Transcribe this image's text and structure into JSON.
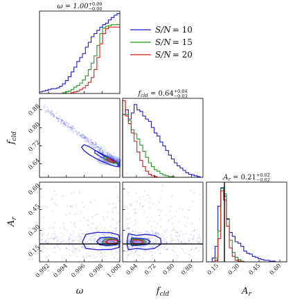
{
  "chart_data": {
    "type": "corner",
    "title": "",
    "parameters": [
      {
        "key": "omega",
        "label": "ω",
        "range": [
          0.991,
          1.0
        ],
        "ticks": [
          "0.992",
          "0.994",
          "0.996",
          "0.998",
          "1.000"
        ],
        "tick_values": [
          0.992,
          0.994,
          0.996,
          0.998,
          1.0
        ]
      },
      {
        "key": "fcld",
        "label": "f",
        "label_sub": "cld",
        "range": [
          0.58,
          0.93
        ],
        "ticks": [
          "0.64",
          "0.72",
          "0.80",
          "0.88"
        ],
        "tick_values": [
          0.64,
          0.72,
          0.8,
          0.88
        ]
      },
      {
        "key": "Ar",
        "label": "A",
        "label_sub": "r",
        "range": [
          0.07,
          0.65
        ],
        "ticks": [
          "0.15",
          "0.30",
          "0.45",
          "0.60"
        ],
        "tick_values": [
          0.15,
          0.3,
          0.45,
          0.6
        ]
      }
    ],
    "marginal_titles": [
      {
        "prefix": "ω = 1.00",
        "sup": "+0.00",
        "sub": "−0.00"
      },
      {
        "prefix": "f",
        "prefix_sub": "cld",
        "mid": " = 0.64",
        "sup": "+0.04",
        "sub": "−0.03"
      },
      {
        "prefix": "A",
        "prefix_sub": "r",
        "mid": " = 0.21",
        "sup": "+0.02",
        "sub": "−0.02"
      }
    ],
    "truth": {
      "Ar": 0.2
    },
    "legend": {
      "placement": "top-right"
    },
    "series": [
      {
        "name": "S/N = 10",
        "name_main": "S/N",
        "name_value": "= 10",
        "color": "#1a1ad6",
        "hist_omega": [
          0.02,
          0.03,
          0.04,
          0.05,
          0.06,
          0.06,
          0.07,
          0.09,
          0.12,
          0.16,
          0.21,
          0.27,
          0.33,
          0.4,
          0.45,
          0.5,
          0.58,
          0.64,
          0.71,
          0.75,
          0.79,
          0.83,
          0.86,
          0.88,
          0.92,
          0.95,
          0.98,
          1.0
        ],
        "hist_fcld": [
          0.82,
          0.88,
          0.76,
          0.84,
          0.95,
          0.88,
          0.86,
          0.8,
          0.76,
          0.73,
          0.65,
          0.58,
          0.54,
          0.46,
          0.41,
          0.35,
          0.29,
          0.24,
          0.19,
          0.15,
          0.12,
          0.09,
          0.06,
          0.04,
          0.03,
          0.02,
          0.01,
          0.0
        ],
        "hist_Ar": [
          0.0,
          0.0,
          0.05,
          0.2,
          0.72,
          0.96,
          0.85,
          0.55,
          0.38,
          0.33,
          0.26,
          0.24,
          0.2,
          0.14,
          0.11,
          0.1,
          0.07,
          0.06,
          0.04,
          0.03,
          0.02,
          0.02,
          0.01,
          0.01,
          0.0,
          0.0,
          0.0,
          0.0
        ]
      },
      {
        "name": "S/N = 15",
        "name_main": "S/N",
        "name_value": "= 15",
        "color": "#1f9a1f",
        "hist_omega": [
          0.0,
          0.0,
          0.0,
          0.0,
          0.0,
          0.0,
          0.0,
          0.0,
          0.01,
          0.02,
          0.03,
          0.05,
          0.08,
          0.1,
          0.13,
          0.17,
          0.22,
          0.3,
          0.38,
          0.47,
          0.6,
          0.75,
          0.82,
          0.84,
          0.85,
          0.86,
          0.86,
          0.86
        ],
        "hist_fcld": [
          1.0,
          0.82,
          0.74,
          0.62,
          0.57,
          0.5,
          0.42,
          0.34,
          0.26,
          0.19,
          0.14,
          0.1,
          0.08,
          0.05,
          0.03,
          0.02,
          0.01,
          0.01,
          0.0,
          0.0,
          0.0,
          0.0,
          0.0,
          0.0,
          0.0,
          0.0,
          0.0,
          0.0
        ],
        "hist_Ar": [
          0.0,
          0.0,
          0.0,
          0.05,
          0.4,
          0.95,
          0.88,
          0.56,
          0.28,
          0.12,
          0.06,
          0.03,
          0.01,
          0.0,
          0.0,
          0.0,
          0.0,
          0.0,
          0.0,
          0.0,
          0.0,
          0.0,
          0.0,
          0.0,
          0.0,
          0.0,
          0.0,
          0.0
        ]
      },
      {
        "name": "S/N = 20",
        "name_main": "S/N",
        "name_value": "= 20",
        "color": "#d81818",
        "hist_omega": [
          0.0,
          0.0,
          0.0,
          0.0,
          0.0,
          0.0,
          0.0,
          0.0,
          0.0,
          0.0,
          0.0,
          0.01,
          0.02,
          0.03,
          0.05,
          0.07,
          0.1,
          0.14,
          0.2,
          0.3,
          0.45,
          0.62,
          0.75,
          0.81,
          0.83,
          0.83,
          0.83,
          0.83
        ],
        "hist_fcld": [
          1.0,
          0.8,
          0.7,
          0.58,
          0.47,
          0.33,
          0.22,
          0.14,
          0.08,
          0.04,
          0.02,
          0.01,
          0.0,
          0.0,
          0.0,
          0.0,
          0.0,
          0.0,
          0.0,
          0.0,
          0.0,
          0.0,
          0.0,
          0.0,
          0.0,
          0.0,
          0.0,
          0.0
        ],
        "hist_Ar": [
          0.0,
          0.0,
          0.0,
          0.02,
          0.3,
          0.92,
          0.8,
          0.46,
          0.18,
          0.07,
          0.02,
          0.01,
          0.0,
          0.0,
          0.0,
          0.0,
          0.0,
          0.0,
          0.0,
          0.0,
          0.0,
          0.0,
          0.0,
          0.0,
          0.0,
          0.0,
          0.0,
          0.0
        ]
      }
    ],
    "contours": [
      {
        "panel": "fcld_vs_omega",
        "series": "S/N = 10",
        "color": "#1a1ad6",
        "points": [
          [
            0.996,
            0.725
          ],
          [
            0.9966,
            0.715
          ],
          [
            0.9973,
            0.698
          ],
          [
            0.998,
            0.68
          ],
          [
            0.9987,
            0.664
          ],
          [
            0.9993,
            0.65
          ],
          [
            0.9998,
            0.638
          ],
          [
            0.9999,
            0.63
          ],
          [
            0.9996,
            0.628
          ],
          [
            0.999,
            0.634
          ],
          [
            0.9982,
            0.647
          ],
          [
            0.9974,
            0.662
          ],
          [
            0.9966,
            0.68
          ],
          [
            0.996,
            0.698
          ],
          [
            0.9957,
            0.714
          ]
        ]
      },
      {
        "panel": "fcld_vs_omega",
        "series": "S/N = 10",
        "color": "#1a1ad6",
        "points": [
          [
            0.9972,
            0.7
          ],
          [
            0.998,
            0.684
          ],
          [
            0.9988,
            0.668
          ],
          [
            0.9994,
            0.654
          ],
          [
            0.9997,
            0.646
          ],
          [
            0.9993,
            0.645
          ],
          [
            0.9986,
            0.656
          ],
          [
            0.9978,
            0.672
          ],
          [
            0.9972,
            0.688
          ]
        ]
      },
      {
        "panel": "fcld_vs_omega",
        "series": "S/N = 15",
        "color": "#1f9a1f",
        "points": [
          [
            0.9982,
            0.672
          ],
          [
            0.9988,
            0.662
          ],
          [
            0.9994,
            0.65
          ],
          [
            0.9997,
            0.644
          ],
          [
            0.9993,
            0.642
          ],
          [
            0.9987,
            0.652
          ],
          [
            0.9982,
            0.663
          ]
        ]
      },
      {
        "panel": "fcld_vs_omega",
        "series": "S/N = 20",
        "color": "#d81818",
        "points": [
          [
            0.9986,
            0.664
          ],
          [
            0.9991,
            0.656
          ],
          [
            0.9995,
            0.649
          ],
          [
            0.9992,
            0.647
          ],
          [
            0.9987,
            0.654
          ]
        ]
      },
      {
        "panel": "Ar_vs_omega",
        "series": "S/N = 10",
        "color": "#1a1ad6",
        "points": [
          [
            0.9958,
            0.215
          ],
          [
            0.9962,
            0.27
          ],
          [
            0.9975,
            0.285
          ],
          [
            0.999,
            0.282
          ],
          [
            0.9999,
            0.265
          ],
          [
            1.0,
            0.215
          ],
          [
            0.9999,
            0.175
          ],
          [
            0.999,
            0.16
          ],
          [
            0.9975,
            0.158
          ],
          [
            0.9962,
            0.168
          ]
        ]
      },
      {
        "panel": "Ar_vs_omega",
        "series": "S/N = 10",
        "color": "#1a1ad6",
        "points": [
          [
            0.9974,
            0.218
          ],
          [
            0.9978,
            0.245
          ],
          [
            0.9988,
            0.25
          ],
          [
            0.9997,
            0.24
          ],
          [
            0.9999,
            0.215
          ],
          [
            0.9996,
            0.195
          ],
          [
            0.9986,
            0.188
          ],
          [
            0.9977,
            0.195
          ]
        ]
      },
      {
        "panel": "Ar_vs_omega",
        "series": "S/N = 15",
        "color": "#1f9a1f",
        "points": [
          [
            0.998,
            0.215
          ],
          [
            0.9983,
            0.235
          ],
          [
            0.999,
            0.238
          ],
          [
            0.9997,
            0.232
          ],
          [
            0.9998,
            0.212
          ],
          [
            0.9995,
            0.198
          ],
          [
            0.9987,
            0.195
          ],
          [
            0.9982,
            0.2
          ]
        ]
      },
      {
        "panel": "Ar_vs_omega",
        "series": "S/N = 20",
        "color": "#d81818",
        "points": [
          [
            0.9984,
            0.215
          ],
          [
            0.9987,
            0.23
          ],
          [
            0.9993,
            0.232
          ],
          [
            0.9997,
            0.226
          ],
          [
            0.9997,
            0.21
          ],
          [
            0.9992,
            0.202
          ],
          [
            0.9987,
            0.204
          ]
        ]
      },
      {
        "panel": "Ar_vs_fcld",
        "series": "S/N = 10",
        "color": "#1a1ad6",
        "points": [
          [
            0.6,
            0.225
          ],
          [
            0.605,
            0.275
          ],
          [
            0.64,
            0.262
          ],
          [
            0.68,
            0.27
          ],
          [
            0.72,
            0.262
          ],
          [
            0.745,
            0.24
          ],
          [
            0.748,
            0.2
          ],
          [
            0.72,
            0.168
          ],
          [
            0.68,
            0.16
          ],
          [
            0.64,
            0.168
          ],
          [
            0.605,
            0.158
          ],
          [
            0.6,
            0.19
          ]
        ]
      },
      {
        "panel": "Ar_vs_fcld",
        "series": "S/N = 10",
        "color": "#1a1ad6",
        "points": [
          [
            0.615,
            0.215
          ],
          [
            0.62,
            0.245
          ],
          [
            0.65,
            0.24
          ],
          [
            0.685,
            0.236
          ],
          [
            0.7,
            0.218
          ],
          [
            0.69,
            0.198
          ],
          [
            0.655,
            0.192
          ],
          [
            0.62,
            0.188
          ]
        ]
      },
      {
        "panel": "Ar_vs_fcld",
        "series": "S/N = 15",
        "color": "#1f9a1f",
        "points": [
          [
            0.618,
            0.215
          ],
          [
            0.622,
            0.236
          ],
          [
            0.65,
            0.234
          ],
          [
            0.675,
            0.228
          ],
          [
            0.682,
            0.212
          ],
          [
            0.67,
            0.198
          ],
          [
            0.645,
            0.196
          ],
          [
            0.622,
            0.196
          ]
        ]
      },
      {
        "panel": "Ar_vs_fcld",
        "series": "S/N = 20",
        "color": "#d81818",
        "points": [
          [
            0.622,
            0.215
          ],
          [
            0.626,
            0.23
          ],
          [
            0.65,
            0.229
          ],
          [
            0.668,
            0.222
          ],
          [
            0.67,
            0.21
          ],
          [
            0.658,
            0.202
          ],
          [
            0.64,
            0.2
          ],
          [
            0.626,
            0.204
          ]
        ]
      }
    ]
  }
}
